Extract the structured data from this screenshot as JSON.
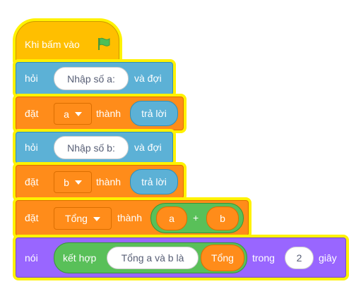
{
  "blocks": [
    {
      "label": "Khi bấm vào"
    },
    {
      "label": "hỏi",
      "input": "Nhập số a:",
      "suffix": "và đợi"
    },
    {
      "label": "đặt",
      "variable": "a",
      "middle": "thành",
      "reporter": "trả lời"
    },
    {
      "label": "hỏi",
      "input": "Nhập số b:",
      "suffix": "và đợi"
    },
    {
      "label": "đặt",
      "variable": "b",
      "middle": "thành",
      "reporter": "trả lời"
    },
    {
      "label": "đặt",
      "variable": "Tổng",
      "middle": "thành",
      "operator": {
        "left": "a",
        "symbol": "+",
        "right": "b"
      }
    },
    {
      "label": "nói",
      "join": {
        "label": "kết hợp",
        "left": "Tổng a và b là",
        "right": "Tổng"
      },
      "middle": "trong",
      "seconds": 2,
      "suffix": "giây"
    }
  ]
}
